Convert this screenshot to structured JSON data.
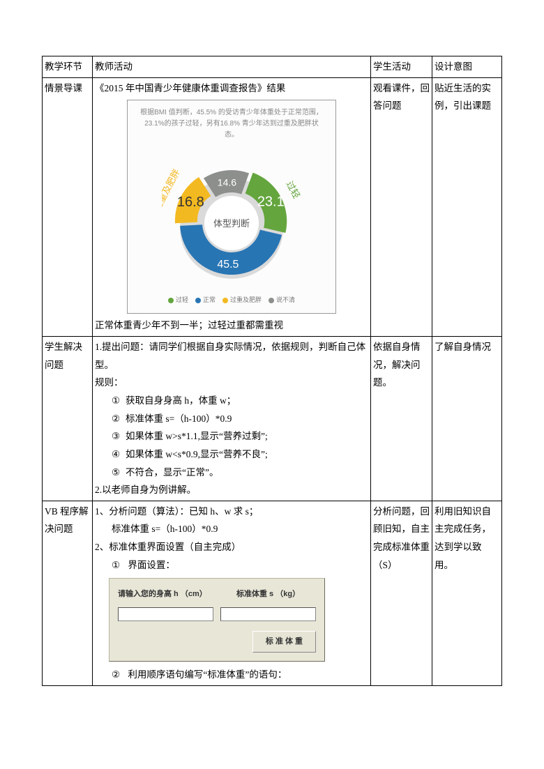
{
  "header": {
    "c1": "教学环节",
    "c2": "教师活动",
    "c3": "学生活动",
    "c4": "设计意图"
  },
  "row1": {
    "c1": "情景导课",
    "title": "《2015 年中国青少年健康体重调查报告》结果",
    "chart_sub1": "根据BMI 值判断，45.5% 的受访青少年体重处于正常范围，",
    "chart_sub2": "23.1%的孩子过轻，另有16.8% 青少年达到过重及肥胖状态。",
    "center_label": "体型判断",
    "outer_labels": {
      "light": "过轻",
      "obese": "过重及肥胖"
    },
    "slices": {
      "light": {
        "value": 23.1,
        "color": "#64a53e",
        "label": "23.1"
      },
      "normal": {
        "value": 45.5,
        "color": "#2875b4",
        "label": "45.5"
      },
      "obese": {
        "value": 16.8,
        "color": "#f3b921",
        "label": "16.8"
      },
      "unknown": {
        "value": 14.6,
        "color": "#8c8f8c",
        "label": "14.6"
      }
    },
    "legend": [
      {
        "text": "过轻",
        "color": "#64a53e"
      },
      {
        "text": "正常",
        "color": "#2875b4"
      },
      {
        "text": "过重及肥胖",
        "color": "#f3b921"
      },
      {
        "text": "说不清",
        "color": "#8c8f8c"
      }
    ],
    "bottom": "正常体重青少年不到一半；过轻过重都需重视",
    "c3": "观看课件，回答问题",
    "c4": "贴近生活的实例，引出课题"
  },
  "row2": {
    "c1": "学生解决问题",
    "intro": "1.提出问题：请同学们根据自身实际情况，依据规则，判断自己体型。",
    "rules_label": "规则：",
    "rules": [
      "获取自身身高 h，体重 w；",
      "标准体重 s=（h-100）*0.9",
      "如果体重 w>s*1.1,显示“营养过剩”;",
      "如果体重 w<s*0.9,显示“营养不良”;",
      "不符合，显示“正常”。"
    ],
    "outro": "2.以老师自身为例讲解。",
    "c3": "依据自身情况，解决问题。",
    "c4": "了解自身情况"
  },
  "row3": {
    "c1": "VB 程序解决问题",
    "l1": "1、分析问题（算法）：已知 h、w 求 s；",
    "l2": "标准体重 s=（h-100）*0.9",
    "l3": "2、标准体重界面设置（自主完成）",
    "s1": "界面设置：",
    "form": {
      "label1": "请输入您的身高 h （cm）",
      "label2": "标准体重 s （kg）",
      "button": "标 准 体 重"
    },
    "s2": "利用顺序语句编写“标准体重”的语句：",
    "c3": "分析问题，回顾旧知，自主完成标准体重（S）",
    "c4": "利用旧知识自主完成任务，达到学以致用。"
  },
  "circled": [
    "①",
    "②",
    "③",
    "④",
    "⑤"
  ]
}
